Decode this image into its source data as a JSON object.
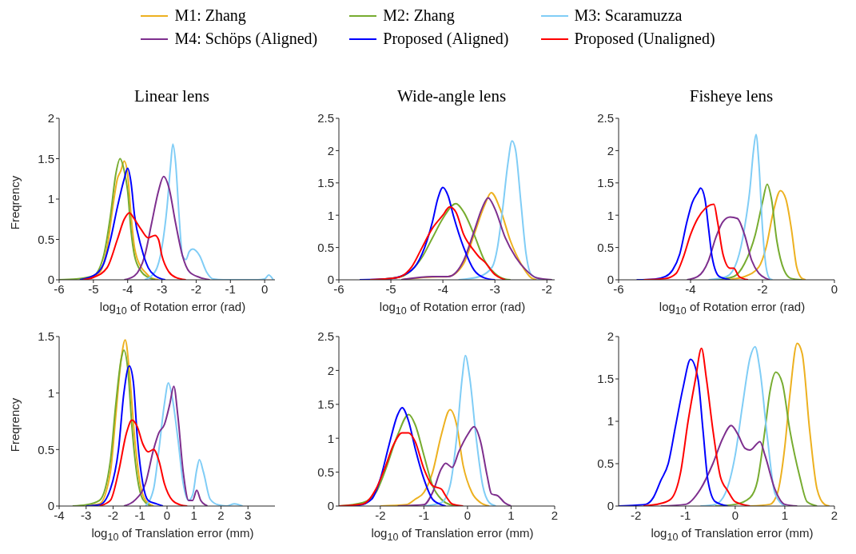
{
  "chart_data": [
    {
      "type": "line",
      "title": "Linear lens",
      "xlabel": "log$_{10}$ of Rotation error (rad)",
      "ylabel": "Freqrency",
      "legend": "top",
      "xlim": [
        -6,
        0.3
      ],
      "xticks": [
        -6,
        -5,
        -4,
        -3,
        -2,
        -1,
        0
      ],
      "ylim": [
        0,
        2
      ],
      "yticks": [
        0,
        0.5,
        1,
        1.5,
        2
      ],
      "series": [
        {
          "name": "M1: Zhang",
          "color": "#edb120",
          "x": [
            -5.3,
            -4.8,
            -4.6,
            -4.4,
            -4.3,
            -4.2,
            -4.1,
            -4.0,
            -3.9,
            -3.8,
            -3.6,
            -3.5,
            -3.3,
            -3.1
          ],
          "values": [
            0,
            0.1,
            0.4,
            1.0,
            1.25,
            1.35,
            1.47,
            1.3,
            0.8,
            0.4,
            0.15,
            0.1,
            0.02,
            0
          ]
        },
        {
          "name": "M2: Zhang",
          "color": "#77ac30",
          "x": [
            -6,
            -5.5,
            -5,
            -4.7,
            -4.5,
            -4.35,
            -4.22,
            -4.1,
            -4.0,
            -3.9,
            -3.8,
            -3.6,
            -3.4,
            -3.2
          ],
          "values": [
            0,
            0.01,
            0.05,
            0.3,
            0.8,
            1.3,
            1.5,
            1.35,
            1.1,
            0.6,
            0.3,
            0.1,
            0.03,
            0
          ]
        },
        {
          "name": "M3: Scaramuzza",
          "color": "#80cdf6",
          "x": [
            -3.5,
            -3.2,
            -3.0,
            -2.85,
            -2.75,
            -2.68,
            -2.6,
            -2.5,
            -2.4,
            -2.3,
            -2.2,
            -2.1,
            -1.9,
            -1.7,
            -1.5,
            -1.2,
            -0.2,
            0.0,
            0.12,
            0.25
          ],
          "values": [
            0,
            0.1,
            0.4,
            0.9,
            1.4,
            1.68,
            1.45,
            0.8,
            0.3,
            0.25,
            0.35,
            0.38,
            0.3,
            0.1,
            0.01,
            0,
            0,
            0.01,
            0.06,
            0
          ]
        },
        {
          "name": "M4: Schöps (Aligned)",
          "color": "#7e2f8e",
          "x": [
            -4.1,
            -3.8,
            -3.5,
            -3.3,
            -3.1,
            -2.95,
            -2.8,
            -2.6,
            -2.4,
            -2.2,
            -1.9,
            -1.6
          ],
          "values": [
            0,
            0.05,
            0.3,
            0.7,
            1.1,
            1.28,
            1.15,
            0.7,
            0.3,
            0.1,
            0.03,
            0
          ]
        },
        {
          "name": "Proposed (Aligned)",
          "color": "#0000ff",
          "x": [
            -5.4,
            -5.0,
            -4.7,
            -4.5,
            -4.3,
            -4.1,
            -4.0,
            -3.9,
            -3.8,
            -3.6,
            -3.4,
            -3.2,
            -2.9
          ],
          "values": [
            0,
            0.05,
            0.2,
            0.5,
            0.9,
            1.25,
            1.38,
            1.2,
            0.8,
            0.4,
            0.15,
            0.05,
            0
          ]
        },
        {
          "name": "Proposed (Unaligned)",
          "color": "#ff0000",
          "x": [
            -5.3,
            -5.0,
            -4.6,
            -4.3,
            -4.1,
            -3.95,
            -3.8,
            -3.6,
            -3.4,
            -3.2,
            -3.1,
            -3.0,
            -2.8,
            -2.6,
            -2.3
          ],
          "values": [
            0,
            0.03,
            0.15,
            0.5,
            0.75,
            0.83,
            0.75,
            0.62,
            0.52,
            0.55,
            0.5,
            0.3,
            0.1,
            0.03,
            0
          ]
        }
      ]
    },
    {
      "type": "line",
      "title": "Wide-angle lens",
      "xlabel": "log$_{10}$ of Rotation error (rad)",
      "xlim": [
        -6,
        -1.85
      ],
      "xticks": [
        -6,
        -5,
        -4,
        -3,
        -2
      ],
      "ylim": [
        0,
        2.5
      ],
      "yticks": [
        0,
        0.5,
        1,
        1.5,
        2,
        2.5
      ],
      "series": [
        {
          "color": "#edb120",
          "x": [
            -4.8,
            -4.3,
            -3.9,
            -3.6,
            -3.4,
            -3.2,
            -3.07,
            -2.9,
            -2.7,
            -2.5,
            -2.3,
            -2.2
          ],
          "values": [
            0,
            0.04,
            0.05,
            0.25,
            0.7,
            1.15,
            1.35,
            1.1,
            0.6,
            0.25,
            0.03,
            0
          ]
        },
        {
          "color": "#77ac30",
          "x": [
            -5.3,
            -4.8,
            -4.6,
            -4.4,
            -4.2,
            -4.0,
            -3.75,
            -3.6,
            -3.4,
            -3.2,
            -3.0,
            -2.8,
            -2.7
          ],
          "values": [
            0,
            0.05,
            0.15,
            0.35,
            0.65,
            0.95,
            1.18,
            1.05,
            0.7,
            0.3,
            0.1,
            0.01,
            0
          ]
        },
        {
          "color": "#80cdf6",
          "x": [
            -3.7,
            -3.3,
            -3.05,
            -2.95,
            -2.85,
            -2.75,
            -2.67,
            -2.6,
            -2.5,
            -2.4,
            -2.3,
            -2.1
          ],
          "values": [
            0,
            0.05,
            0.2,
            0.5,
            1.1,
            1.8,
            2.15,
            2.0,
            1.2,
            0.4,
            0.08,
            0
          ]
        },
        {
          "color": "#7e2f8e",
          "x": [
            -4.8,
            -4.2,
            -3.9,
            -3.6,
            -3.4,
            -3.25,
            -3.13,
            -3.0,
            -2.8,
            -2.6,
            -2.4,
            -2.2,
            -1.9
          ],
          "values": [
            0,
            0.05,
            0.05,
            0.3,
            0.75,
            1.1,
            1.27,
            1.1,
            0.65,
            0.35,
            0.15,
            0.03,
            0
          ]
        },
        {
          "color": "#0000ff",
          "x": [
            -5.6,
            -5,
            -4.6,
            -4.4,
            -4.2,
            -4.1,
            -4.0,
            -3.9,
            -3.8,
            -3.6,
            -3.4,
            -3.2,
            -3.0
          ],
          "values": [
            0,
            0.02,
            0.15,
            0.4,
            0.9,
            1.25,
            1.43,
            1.3,
            1.0,
            0.5,
            0.15,
            0.03,
            0
          ]
        },
        {
          "color": "#ff0000",
          "x": [
            -5.4,
            -4.9,
            -4.6,
            -4.4,
            -4.2,
            -4.0,
            -3.87,
            -3.75,
            -3.6,
            -3.4,
            -3.3,
            -3.2,
            -3.0,
            -2.8
          ],
          "values": [
            0,
            0.03,
            0.2,
            0.5,
            0.8,
            1.0,
            1.13,
            1.05,
            0.7,
            0.45,
            0.35,
            0.28,
            0.08,
            0
          ]
        }
      ]
    },
    {
      "type": "line",
      "title": "Fisheye lens",
      "xlabel": "log$_{10}$ of Rotation error (rad)",
      "xlim": [
        -6,
        0
      ],
      "xticks": [
        -6,
        -4,
        -2,
        0
      ],
      "ylim": [
        0,
        2.5
      ],
      "yticks": [
        0,
        0.5,
        1,
        1.5,
        2,
        2.5
      ],
      "series": [
        {
          "color": "#edb120",
          "x": [
            -3.0,
            -2.5,
            -2.1,
            -1.9,
            -1.7,
            -1.5,
            -1.35,
            -1.2,
            -1.05,
            -0.9,
            -0.8
          ],
          "values": [
            0,
            0.05,
            0.2,
            0.5,
            1.05,
            1.38,
            1.25,
            0.8,
            0.2,
            0.02,
            0
          ]
        },
        {
          "color": "#77ac30",
          "x": [
            -3.3,
            -2.8,
            -2.5,
            -2.2,
            -2.0,
            -1.87,
            -1.75,
            -1.6,
            -1.4,
            -1.2,
            -0.9
          ],
          "values": [
            0,
            0.05,
            0.25,
            0.7,
            1.2,
            1.48,
            1.25,
            0.6,
            0.15,
            0.02,
            0
          ]
        },
        {
          "color": "#80cdf6",
          "x": [
            -3.5,
            -3.0,
            -2.7,
            -2.5,
            -2.35,
            -2.25,
            -2.18,
            -2.1,
            -2.0,
            -1.9,
            -1.8,
            -1.72
          ],
          "values": [
            0,
            0.05,
            0.3,
            0.8,
            1.4,
            2.0,
            2.25,
            1.8,
            0.8,
            0.2,
            0.02,
            0
          ]
        },
        {
          "color": "#7e2f8e",
          "x": [
            -4.1,
            -3.8,
            -3.5,
            -3.3,
            -3.1,
            -2.9,
            -2.7,
            -2.5,
            -2.3,
            -2.1,
            -1.9,
            -1.8
          ],
          "values": [
            0,
            0.05,
            0.3,
            0.65,
            0.9,
            0.97,
            0.95,
            0.7,
            0.3,
            0.1,
            0.02,
            0
          ]
        },
        {
          "color": "#0000ff",
          "x": [
            -5.5,
            -5,
            -4.7,
            -4.5,
            -4.3,
            -4.1,
            -3.95,
            -3.8,
            -3.72,
            -3.6,
            -3.5,
            -3.4,
            -3.2,
            -2.9
          ],
          "values": [
            0,
            0.01,
            0.05,
            0.15,
            0.4,
            0.9,
            1.2,
            1.35,
            1.42,
            1.25,
            0.8,
            0.35,
            0.05,
            0
          ]
        },
        {
          "color": "#ff0000",
          "x": [
            -5.3,
            -4.7,
            -4.4,
            -4.2,
            -4.0,
            -3.8,
            -3.6,
            -3.35,
            -3.25,
            -3.1,
            -2.9,
            -2.8,
            -2.65,
            -2.4
          ],
          "values": [
            0,
            0.02,
            0.1,
            0.35,
            0.7,
            0.95,
            1.1,
            1.17,
            0.9,
            0.4,
            0.18,
            0.18,
            0.05,
            0
          ]
        }
      ]
    },
    {
      "type": "line",
      "xlabel": "log$_{10}$ of Translation error (mm)",
      "ylabel": "Freqrency",
      "xlim": [
        -4,
        4
      ],
      "xticks": [
        -4,
        -3,
        -2,
        -1,
        0,
        1,
        2,
        3
      ],
      "ylim": [
        0,
        1.5
      ],
      "yticks": [
        0,
        0.5,
        1,
        1.5
      ],
      "series": [
        {
          "color": "#edb120",
          "x": [
            -3,
            -2.5,
            -2.1,
            -1.9,
            -1.7,
            -1.55,
            -1.4,
            -1.2,
            -1.0,
            -0.8,
            -0.5
          ],
          "values": [
            0,
            0.02,
            0.3,
            0.8,
            1.3,
            1.47,
            1.2,
            0.6,
            0.2,
            0.05,
            0
          ]
        },
        {
          "color": "#77ac30",
          "x": [
            -3.5,
            -3.0,
            -2.5,
            -2.1,
            -1.9,
            -1.7,
            -1.6,
            -1.45,
            -1.3,
            -1.1,
            -0.9,
            -0.6
          ],
          "values": [
            0,
            0.01,
            0.05,
            0.4,
            0.9,
            1.3,
            1.38,
            1.2,
            0.7,
            0.25,
            0.06,
            0
          ]
        },
        {
          "color": "#80cdf6",
          "x": [
            -0.8,
            -0.5,
            -0.3,
            -0.1,
            0.05,
            0.2,
            0.4,
            0.6,
            0.8,
            0.95,
            1.1,
            1.2,
            1.35,
            1.6,
            1.9,
            2.2,
            2.5,
            2.8
          ],
          "values": [
            0,
            0.15,
            0.5,
            0.9,
            1.09,
            0.95,
            0.6,
            0.2,
            0.05,
            0.1,
            0.32,
            0.41,
            0.3,
            0.06,
            0.01,
            0,
            0.02,
            0
          ]
        },
        {
          "color": "#7e2f8e",
          "x": [
            -1.6,
            -1.2,
            -0.8,
            -0.5,
            -0.3,
            -0.1,
            0.1,
            0.25,
            0.4,
            0.6,
            0.8,
            0.95,
            1.1,
            1.25,
            1.5
          ],
          "values": [
            0,
            0.05,
            0.2,
            0.5,
            0.65,
            0.72,
            0.9,
            1.06,
            0.8,
            0.3,
            0.05,
            0.05,
            0.14,
            0.05,
            0
          ]
        },
        {
          "color": "#0000ff",
          "x": [
            -3.0,
            -2.5,
            -2.1,
            -1.8,
            -1.6,
            -1.4,
            -1.25,
            -1.1,
            -0.9,
            -0.7,
            -0.4,
            -0.15
          ],
          "values": [
            0,
            0.01,
            0.15,
            0.5,
            1.0,
            1.24,
            1.1,
            0.6,
            0.2,
            0.05,
            0.02,
            0
          ]
        },
        {
          "color": "#ff0000",
          "x": [
            -2.5,
            -2.1,
            -1.8,
            -1.5,
            -1.3,
            -1.1,
            -0.9,
            -0.7,
            -0.5,
            -0.3,
            -0.1,
            0.2,
            0.5,
            0.75
          ],
          "values": [
            0,
            0.05,
            0.3,
            0.65,
            0.76,
            0.7,
            0.55,
            0.48,
            0.5,
            0.4,
            0.2,
            0.05,
            0.01,
            0
          ]
        }
      ]
    },
    {
      "type": "line",
      "xlabel": "log$_{10}$ of Translation error (mm)",
      "xlim": [
        -2.95,
        2
      ],
      "xticks": [
        -2,
        -1,
        0,
        1,
        2
      ],
      "ylim": [
        0,
        2.5
      ],
      "yticks": [
        0,
        0.5,
        1,
        1.5,
        2,
        2.5
      ],
      "series": [
        {
          "color": "#edb120",
          "x": [
            -2.0,
            -1.4,
            -1.2,
            -1.0,
            -0.8,
            -0.6,
            -0.4,
            -0.25,
            -0.1,
            0.1,
            0.3,
            0.5
          ],
          "values": [
            0,
            0.02,
            0.1,
            0.2,
            0.5,
            1.05,
            1.42,
            1.2,
            0.6,
            0.2,
            0.05,
            0
          ]
        },
        {
          "color": "#77ac30",
          "x": [
            -2.95,
            -2.4,
            -2.1,
            -1.9,
            -1.6,
            -1.35,
            -1.2,
            -1.0,
            -0.8,
            -0.6,
            -0.4,
            -0.2
          ],
          "values": [
            0,
            0.05,
            0.2,
            0.5,
            1.05,
            1.35,
            1.2,
            0.75,
            0.3,
            0.1,
            0.02,
            0
          ]
        },
        {
          "color": "#80cdf6",
          "x": [
            -1.0,
            -0.6,
            -0.4,
            -0.25,
            -0.12,
            -0.05,
            0.05,
            0.2,
            0.35,
            0.5,
            0.65
          ],
          "values": [
            0,
            0.05,
            0.3,
            1.0,
            1.9,
            2.22,
            1.9,
            1.0,
            0.3,
            0.05,
            0
          ]
        },
        {
          "color": "#7e2f8e",
          "x": [
            -1.6,
            -1.0,
            -0.8,
            -0.6,
            -0.5,
            -0.35,
            -0.2,
            0,
            0.15,
            0.3,
            0.45,
            0.55,
            0.7,
            0.85,
            1.0
          ],
          "values": [
            0,
            0.02,
            0.2,
            0.55,
            0.63,
            0.57,
            0.8,
            1.05,
            1.17,
            0.95,
            0.45,
            0.18,
            0.15,
            0.05,
            0
          ]
        },
        {
          "color": "#0000ff",
          "x": [
            -2.95,
            -2.5,
            -2.2,
            -2.0,
            -1.8,
            -1.6,
            -1.5,
            -1.35,
            -1.2,
            -1.0,
            -0.8,
            -0.6,
            -0.5
          ],
          "values": [
            0,
            0.01,
            0.1,
            0.4,
            0.9,
            1.35,
            1.45,
            1.25,
            0.85,
            0.4,
            0.1,
            0.02,
            0
          ]
        },
        {
          "color": "#ff0000",
          "x": [
            -2.95,
            -2.4,
            -2.1,
            -1.9,
            -1.7,
            -1.5,
            -1.35,
            -1.2,
            -1.0,
            -0.8,
            -0.6,
            -0.5,
            -0.35,
            -0.1
          ],
          "values": [
            0,
            0.03,
            0.25,
            0.55,
            0.9,
            1.08,
            1.08,
            0.95,
            0.55,
            0.3,
            0.25,
            0.15,
            0.03,
            0
          ]
        }
      ]
    },
    {
      "type": "line",
      "xlabel": "log$_{10}$ of Translation error (mm)",
      "xlim": [
        -2.35,
        2
      ],
      "xticks": [
        -2,
        -1,
        0,
        1,
        2
      ],
      "ylim": [
        0,
        2
      ],
      "yticks": [
        0,
        0.5,
        1,
        1.5,
        2
      ],
      "series": [
        {
          "color": "#edb120",
          "x": [
            0.3,
            0.7,
            0.85,
            1.0,
            1.1,
            1.25,
            1.35,
            1.5,
            1.65,
            1.8,
            1.9
          ],
          "values": [
            0,
            0.02,
            0.15,
            0.7,
            1.3,
            1.92,
            1.8,
            0.9,
            0.2,
            0.02,
            0
          ]
        },
        {
          "color": "#77ac30",
          "x": [
            -0.4,
            0,
            0.3,
            0.45,
            0.6,
            0.7,
            0.82,
            0.95,
            1.1,
            1.3,
            1.45,
            1.65
          ],
          "values": [
            0,
            0.02,
            0.1,
            0.3,
            0.9,
            1.35,
            1.58,
            1.45,
            0.9,
            0.35,
            0.05,
            0
          ]
        },
        {
          "color": "#80cdf6",
          "x": [
            -0.7,
            -0.4,
            -0.2,
            0,
            0.15,
            0.3,
            0.4,
            0.5,
            0.65,
            0.8,
            1.0
          ],
          "values": [
            0,
            0.02,
            0.15,
            0.6,
            1.2,
            1.75,
            1.88,
            1.6,
            0.8,
            0.15,
            0
          ]
        },
        {
          "color": "#7e2f8e",
          "x": [
            -1.5,
            -1.0,
            -0.7,
            -0.45,
            -0.25,
            -0.08,
            0.05,
            0.2,
            0.3,
            0.5,
            0.6,
            0.8,
            1.0,
            1.25
          ],
          "values": [
            0,
            0.02,
            0.2,
            0.5,
            0.8,
            0.95,
            0.85,
            0.68,
            0.66,
            0.76,
            0.6,
            0.2,
            0.02,
            0
          ]
        },
        {
          "color": "#0000ff",
          "x": [
            -2.35,
            -2.0,
            -1.8,
            -1.65,
            -1.5,
            -1.35,
            -1.2,
            -1.05,
            -0.9,
            -0.75,
            -0.65,
            -0.55,
            -0.4,
            -0.15
          ],
          "values": [
            0,
            0.01,
            0.02,
            0.1,
            0.3,
            0.5,
            0.95,
            1.4,
            1.73,
            1.5,
            0.9,
            0.3,
            0.05,
            0
          ]
        },
        {
          "color": "#ff0000",
          "x": [
            -1.85,
            -1.5,
            -1.3,
            -1.1,
            -0.95,
            -0.8,
            -0.68,
            -0.58,
            -0.45,
            -0.3,
            -0.15,
            0,
            0.3
          ],
          "values": [
            0,
            0.03,
            0.08,
            0.4,
            1.0,
            1.5,
            1.86,
            1.5,
            0.9,
            0.35,
            0.18,
            0.05,
            0
          ]
        }
      ]
    }
  ]
}
